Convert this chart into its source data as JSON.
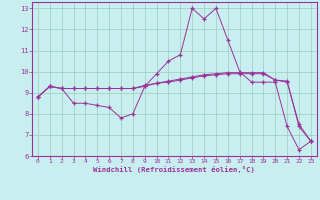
{
  "background_color": "#c8eef0",
  "plot_bg_color": "#c8eef0",
  "line_color": "#993399",
  "grid_color": "#99ccbb",
  "xlabel": "Windchill (Refroidissement éolien,°C)",
  "xlim": [
    -0.5,
    23.5
  ],
  "ylim": [
    6,
    13.3
  ],
  "xticks": [
    0,
    1,
    2,
    3,
    4,
    5,
    6,
    7,
    8,
    9,
    10,
    11,
    12,
    13,
    14,
    15,
    16,
    17,
    18,
    19,
    20,
    21,
    22,
    23
  ],
  "yticks": [
    6,
    7,
    8,
    9,
    10,
    11,
    12,
    13
  ],
  "line1_x": [
    0,
    1,
    2,
    3,
    4,
    5,
    6,
    7,
    8,
    9,
    10,
    11,
    12,
    13,
    14,
    15,
    16,
    17,
    18,
    19,
    20,
    21,
    22,
    23
  ],
  "line1_y": [
    8.8,
    9.3,
    9.2,
    9.2,
    9.2,
    9.2,
    9.2,
    9.2,
    9.2,
    9.3,
    9.45,
    9.55,
    9.65,
    9.75,
    9.85,
    9.9,
    9.95,
    9.95,
    9.95,
    9.95,
    9.6,
    9.55,
    7.4,
    6.7
  ],
  "line2_x": [
    0,
    1,
    2,
    3,
    4,
    5,
    6,
    7,
    8,
    9,
    10,
    11,
    12,
    13,
    14,
    15,
    16,
    17,
    18,
    19,
    20,
    21,
    22,
    23
  ],
  "line2_y": [
    8.8,
    9.3,
    9.2,
    8.5,
    8.5,
    8.4,
    8.3,
    7.8,
    8.0,
    9.3,
    9.9,
    10.5,
    10.8,
    13.0,
    12.5,
    13.0,
    11.5,
    10.0,
    9.5,
    9.5,
    9.5,
    7.4,
    6.3,
    6.7
  ],
  "line3_x": [
    0,
    1,
    2,
    3,
    4,
    5,
    6,
    7,
    8,
    9,
    10,
    11,
    12,
    13,
    14,
    15,
    16,
    17,
    18,
    19,
    20,
    21,
    22,
    23
  ],
  "line3_y": [
    8.8,
    9.3,
    9.2,
    9.2,
    9.2,
    9.2,
    9.2,
    9.2,
    9.2,
    9.35,
    9.45,
    9.5,
    9.6,
    9.7,
    9.8,
    9.85,
    9.9,
    9.9,
    9.9,
    9.9,
    9.6,
    9.5,
    7.5,
    6.7
  ]
}
